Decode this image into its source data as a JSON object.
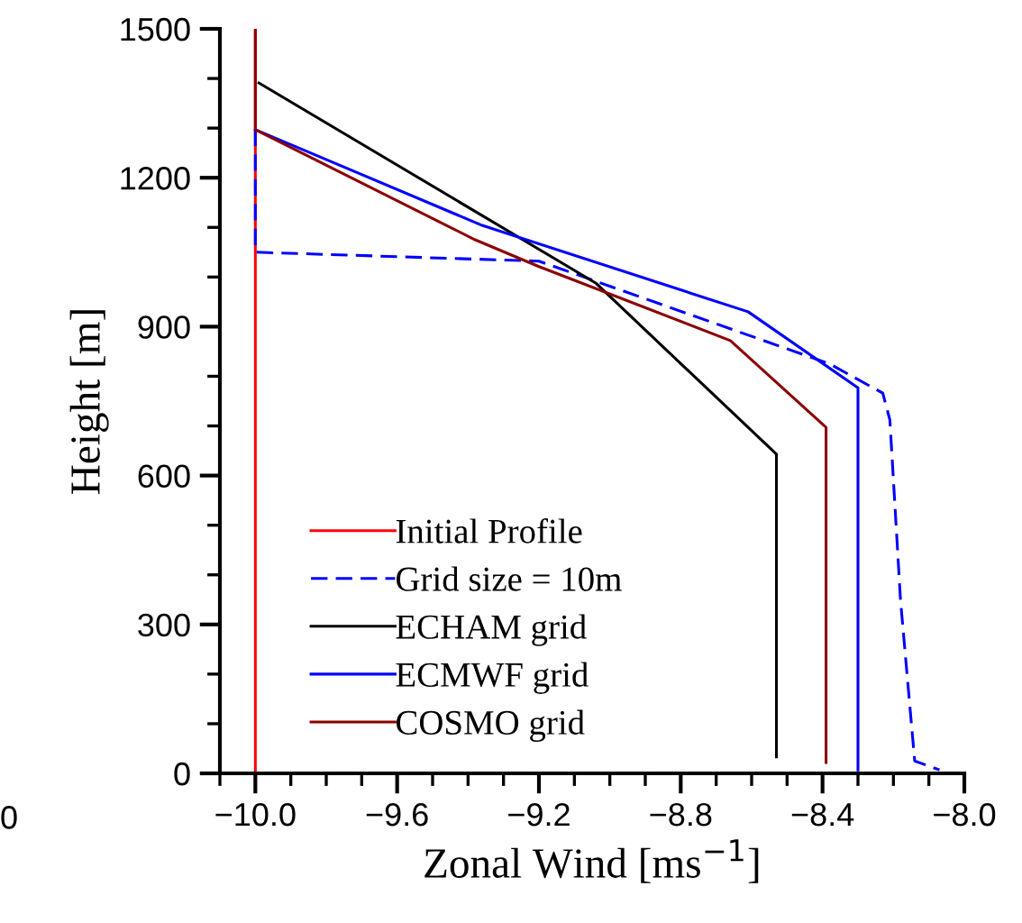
{
  "chart_data": {
    "type": "line",
    "xlabel": "Zonal Wind [ms$^{−1}$]",
    "ylabel": "Height [m]",
    "xlim": [
      -10.1,
      -8.0
    ],
    "xticks": [
      {
        "value": -10.0,
        "label": "−10.0"
      },
      {
        "value": -9.6,
        "label": "−9.6"
      },
      {
        "value": -9.2,
        "label": "−9.2"
      },
      {
        "value": -8.8,
        "label": "−8.8"
      },
      {
        "value": -8.4,
        "label": "−8.4"
      },
      {
        "value": -8.0,
        "label": "−8.0"
      }
    ],
    "ylim": [
      0,
      1500
    ],
    "yticks": [
      0,
      300,
      600,
      900,
      1200,
      1500
    ],
    "legend": "bottom left",
    "grid": false,
    "series": [
      {
        "name": "Initial Profile",
        "color": "#ff0000",
        "line_style": "solid",
        "x": [
          -10.0,
          -10.0
        ],
        "values": [
          0,
          1500
        ]
      },
      {
        "name": "Grid size = 10m",
        "color": "#0000ff",
        "line_style": "dashed",
        "x": [
          -10.0,
          -10.0,
          -9.2,
          -8.38,
          -8.23,
          -8.21,
          -8.18,
          -8.14,
          -8.07
        ],
        "values": [
          1297,
          1050,
          1032,
          825,
          766,
          712,
          349,
          25,
          7
        ]
      },
      {
        "name": "ECHAM grid",
        "color": "#000000",
        "line_style": "solid",
        "x": [
          -9.99,
          -9.04,
          -8.53,
          -8.53
        ],
        "values": [
          1391,
          988,
          643,
          33
        ]
      },
      {
        "name": "ECMWF grid",
        "color": "#0000ff",
        "line_style": "solid",
        "x": [
          -10.0,
          -9.36,
          -8.61,
          -8.3,
          -8.3
        ],
        "values": [
          1297,
          1104,
          930,
          777,
          7
        ]
      },
      {
        "name": "COSMO grid",
        "color": "#8b0000",
        "line_style": "solid",
        "x": [
          -10.0,
          -10.0,
          -9.38,
          -9.2,
          -8.66,
          -8.39,
          -8.39
        ],
        "values": [
          1500,
          1297,
          1075,
          1021,
          872,
          697,
          22
        ]
      }
    ],
    "annotations": [
      "0"
    ]
  }
}
